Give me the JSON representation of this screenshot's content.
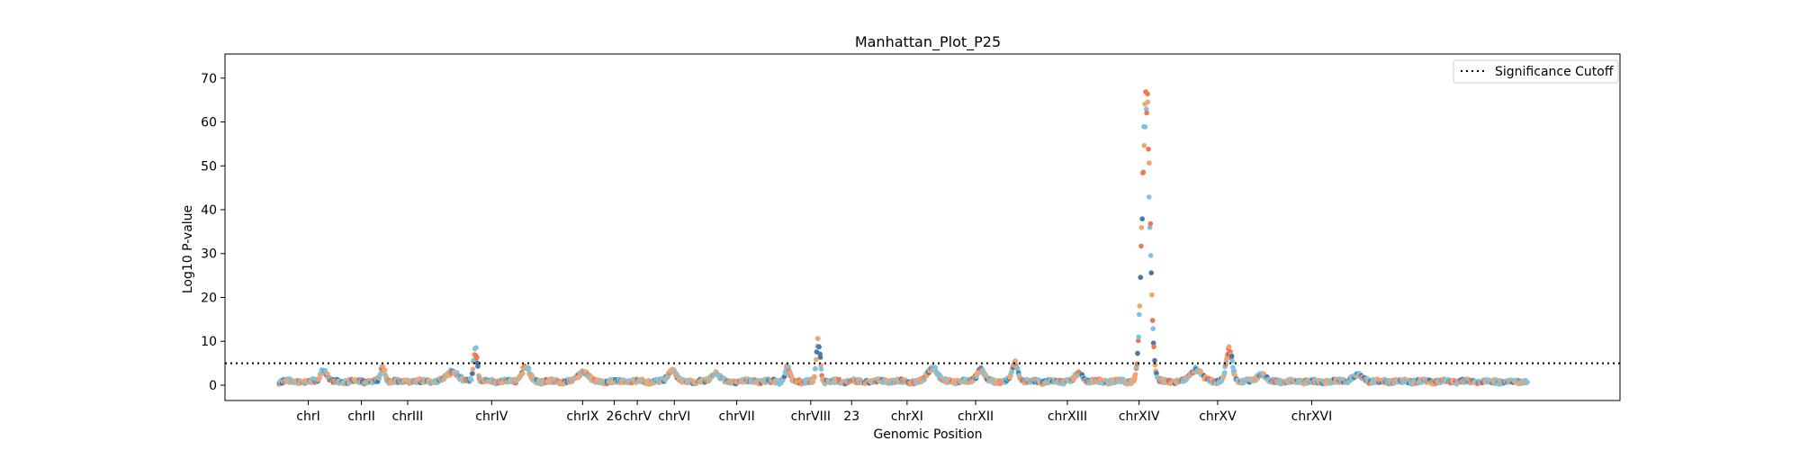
{
  "chart_data": {
    "type": "scatter",
    "title": "Manhattan_Plot_P25",
    "xlabel": "Genomic Position",
    "ylabel": "Log10 P-value",
    "xlim": [
      -70,
      1740
    ],
    "ylim": [
      -3.5,
      75.5
    ],
    "yticks": [
      0,
      10,
      20,
      30,
      40,
      50,
      60,
      70
    ],
    "grid": false,
    "legend_position": "top-right",
    "legend": [
      "Significance Cutoff"
    ],
    "significance_cutoff": 5,
    "colors": {
      "steelblue": "#4678a8",
      "coral": "#f2764f",
      "sandy": "#f3a470",
      "skyblue": "#7ec4dc",
      "cutoff_line": "#000000"
    },
    "chromosomes": [
      {
        "name": "chrI",
        "start": 0,
        "end": 76,
        "color": "steelblue",
        "label_x": 38
      },
      {
        "name": "chrII",
        "start": 76,
        "end": 138,
        "color": "coral",
        "label_x": 107
      },
      {
        "name": "chrIII",
        "start": 138,
        "end": 190,
        "color": "sandy",
        "label_x": 167
      },
      {
        "name": "chrIV",
        "start": 190,
        "end": 362,
        "color": "skyblue",
        "label_x": 276
      },
      {
        "name": "chrIX",
        "start": 362,
        "end": 427,
        "color": "steelblue",
        "label_x": 394
      },
      {
        "name": "26",
        "start": 427,
        "end": 446,
        "color": "coral",
        "label_x": 435
      },
      {
        "name": "chrV",
        "start": 446,
        "end": 510,
        "color": "sandy",
        "label_x": 465
      },
      {
        "name": "chrVI",
        "start": 510,
        "end": 566,
        "color": "skyblue",
        "label_x": 513
      },
      {
        "name": "chrVII",
        "start": 566,
        "end": 663,
        "color": "steelblue",
        "label_x": 594
      },
      {
        "name": "chrVIII",
        "start": 663,
        "end": 718,
        "color": "coral",
        "label_x": 690
      },
      {
        "name": "23",
        "start": 718,
        "end": 771,
        "color": "sandy",
        "label_x": 743
      },
      {
        "name": "chrXI",
        "start": 771,
        "end": 855,
        "color": "skyblue",
        "label_x": 815
      },
      {
        "name": "chrXII",
        "start": 855,
        "end": 990,
        "color": "steelblue",
        "label_x": 904
      },
      {
        "name": "chrXIII",
        "start": 990,
        "end": 1070,
        "color": "coral",
        "label_x": 1023
      },
      {
        "name": "chrXIV",
        "start": 1070,
        "end": 1175,
        "color": "sandy",
        "label_x": 1116
      },
      {
        "name": "chrXV",
        "start": 1175,
        "end": 1300,
        "color": "skyblue",
        "label_x": 1218
      },
      {
        "name": "chrXVI",
        "start": 1300,
        "end": 1620,
        "color": "steelblue",
        "label_x": 1340
      }
    ],
    "peaks": [
      {
        "x": 58,
        "height": 3.0,
        "width": 8
      },
      {
        "x": 135,
        "height": 3.5,
        "width": 6
      },
      {
        "x": 225,
        "height": 2.5,
        "width": 14
      },
      {
        "x": 255,
        "height": 8.0,
        "width": 5
      },
      {
        "x": 320,
        "height": 3.5,
        "width": 10
      },
      {
        "x": 395,
        "height": 2.5,
        "width": 12
      },
      {
        "x": 510,
        "height": 3.0,
        "width": 10
      },
      {
        "x": 567,
        "height": 2.0,
        "width": 10
      },
      {
        "x": 660,
        "height": 3.5,
        "width": 6
      },
      {
        "x": 700,
        "height": 10.0,
        "width": 5
      },
      {
        "x": 848,
        "height": 3.5,
        "width": 12
      },
      {
        "x": 910,
        "height": 3.0,
        "width": 10
      },
      {
        "x": 955,
        "height": 4.5,
        "width": 8
      },
      {
        "x": 1038,
        "height": 2.0,
        "width": 10
      },
      {
        "x": 1125,
        "height": 71.5,
        "width": 10
      },
      {
        "x": 1190,
        "height": 3.0,
        "width": 14
      },
      {
        "x": 1233,
        "height": 8.0,
        "width": 8
      },
      {
        "x": 1275,
        "height": 2.0,
        "width": 10
      },
      {
        "x": 1400,
        "height": 1.5,
        "width": 15
      }
    ]
  }
}
